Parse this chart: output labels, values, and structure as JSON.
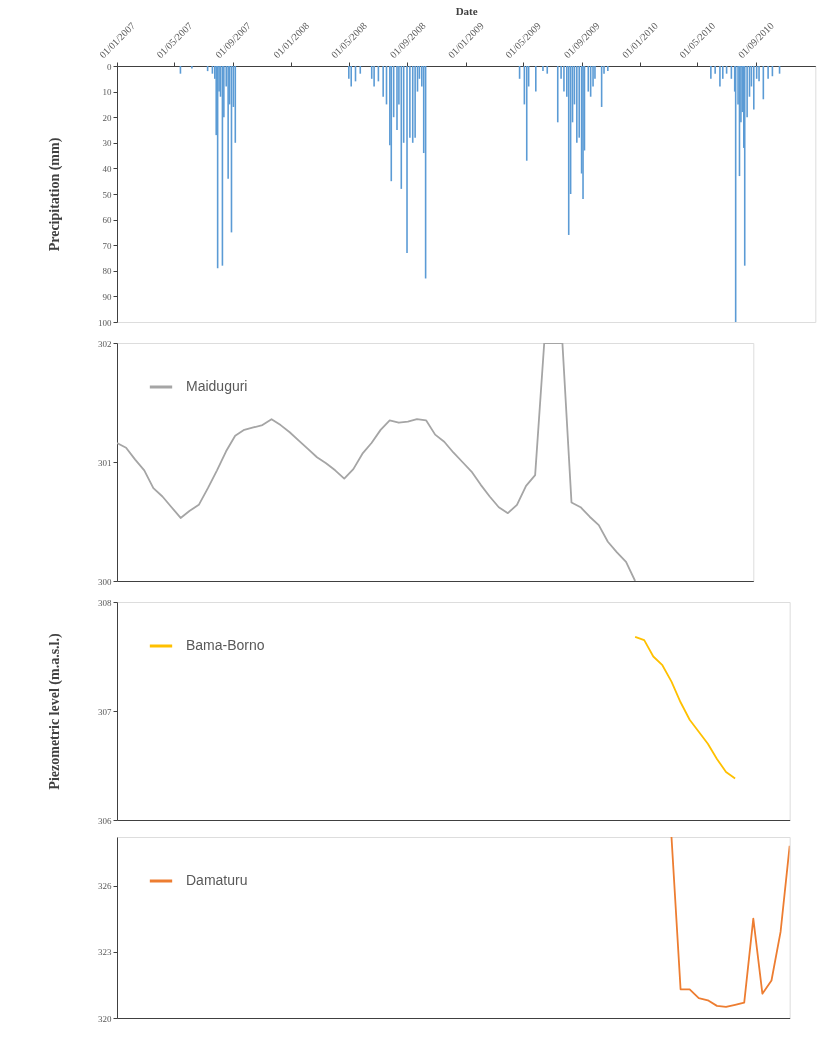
{
  "chart_data": [
    {
      "type": "bar",
      "xlabel": "Date",
      "ylabel": "Precipitation (mm)",
      "color": "#5b9bd5",
      "x": [
        "2007-05-14",
        "2007-06-07",
        "2007-07-10",
        "2007-07-20",
        "2007-07-25",
        "2007-07-28",
        "2007-07-31",
        "2007-08-03",
        "2007-08-06",
        "2007-08-10",
        "2007-08-13",
        "2007-08-18",
        "2007-08-22",
        "2007-08-25",
        "2007-08-29",
        "2007-09-02",
        "2007-09-06",
        "2008-05-01",
        "2008-05-06",
        "2008-05-15",
        "2008-05-25",
        "2008-06-18",
        "2008-06-23",
        "2008-07-02",
        "2008-07-12",
        "2008-07-19",
        "2008-07-26",
        "2008-07-29",
        "2008-08-03",
        "2008-08-10",
        "2008-08-14",
        "2008-08-19",
        "2008-08-24",
        "2008-08-31",
        "2008-09-06",
        "2008-09-12",
        "2008-09-17",
        "2008-09-22",
        "2008-09-26",
        "2008-10-01",
        "2008-10-05",
        "2008-10-09",
        "2009-04-24",
        "2009-05-04",
        "2009-05-09",
        "2009-05-13",
        "2009-05-28",
        "2009-06-12",
        "2009-06-21",
        "2009-07-13",
        "2009-07-20",
        "2009-07-26",
        "2009-08-01",
        "2009-08-05",
        "2009-08-09",
        "2009-08-13",
        "2009-08-17",
        "2009-08-22",
        "2009-08-27",
        "2009-09-01",
        "2009-09-04",
        "2009-09-07",
        "2009-09-15",
        "2009-09-20",
        "2009-09-25",
        "2009-09-29",
        "2009-10-13",
        "2009-10-18",
        "2009-10-26",
        "2010-05-30",
        "2010-06-08",
        "2010-06-18",
        "2010-06-24",
        "2010-07-02",
        "2010-07-12",
        "2010-07-19",
        "2010-07-21",
        "2010-07-26",
        "2010-07-29",
        "2010-08-01",
        "2010-08-04",
        "2010-08-07",
        "2010-08-09",
        "2010-08-14",
        "2010-08-19",
        "2010-08-23",
        "2010-08-28",
        "2010-09-03",
        "2010-09-08",
        "2010-09-17",
        "2010-09-27",
        "2010-10-06",
        "2010-10-21"
      ],
      "values": [
        3,
        1,
        2,
        3,
        5,
        27,
        79,
        10,
        12,
        78,
        20,
        8,
        44,
        15,
        65,
        16,
        30,
        5,
        8,
        6,
        3,
        5,
        8,
        6,
        12,
        15,
        31,
        45,
        20,
        25,
        15,
        48,
        30,
        73,
        28,
        30,
        28,
        10,
        5,
        8,
        34,
        83,
        5,
        15,
        37,
        8,
        10,
        2,
        3,
        22,
        5,
        10,
        12,
        66,
        50,
        22,
        15,
        30,
        28,
        42,
        52,
        33,
        10,
        12,
        8,
        5,
        16,
        3,
        2,
        5,
        3,
        8,
        5,
        3,
        5,
        10,
        100,
        15,
        43,
        22,
        18,
        32,
        78,
        20,
        12,
        8,
        17,
        5,
        6,
        13,
        5,
        4,
        3
      ],
      "xlim": [
        "2007-01-01",
        "2011-01-04"
      ],
      "ylim": [
        100,
        0
      ],
      "xticks": [
        {
          "value": "2007-01-01",
          "label": "01/01/2007"
        },
        {
          "value": "2007-05-01",
          "label": "01/05/2007"
        },
        {
          "value": "2007-09-01",
          "label": "01/09/2007"
        },
        {
          "value": "2008-01-01",
          "label": "01/01/2008"
        },
        {
          "value": "2008-05-01",
          "label": "01/05/2008"
        },
        {
          "value": "2008-09-01",
          "label": "01/09/2008"
        },
        {
          "value": "2009-01-01",
          "label": "01/01/2009"
        },
        {
          "value": "2009-05-01",
          "label": "01/05/2009"
        },
        {
          "value": "2009-09-01",
          "label": "01/09/2009"
        },
        {
          "value": "2010-01-01",
          "label": "01/01/2010"
        },
        {
          "value": "2010-05-01",
          "label": "01/05/2010"
        },
        {
          "value": "2010-09-01",
          "label": "01/09/2010"
        }
      ],
      "yticks": [
        0,
        10,
        20,
        30,
        40,
        50,
        60,
        70,
        80,
        90,
        100
      ]
    },
    {
      "type": "line",
      "legend": "top left",
      "tick_labels": "y",
      "categories": [
        null,
        null,
        null,
        null,
        null,
        null,
        null,
        null,
        null,
        null,
        null,
        null,
        null,
        null,
        null,
        null,
        null,
        null,
        null,
        null,
        null,
        null,
        null,
        null,
        null,
        null,
        null,
        null,
        null,
        null,
        null,
        null,
        null,
        null,
        null,
        null,
        null,
        null,
        null,
        null,
        null,
        null,
        null,
        null,
        null,
        null,
        null,
        null,
        null,
        null,
        null,
        null,
        null,
        null,
        null,
        null,
        null,
        null,
        null,
        null,
        null,
        null,
        null,
        null,
        null,
        null,
        null,
        null,
        null,
        null,
        null
      ],
      "series": [
        {
          "name": "Maiduguri",
          "color": "#a5a5a5",
          "values": [
            301.16,
            301.12,
            301.02,
            300.93,
            300.78,
            300.71,
            300.62,
            300.53,
            300.59,
            300.64,
            300.78,
            300.93,
            301.09,
            301.22,
            301.27,
            301.29,
            301.31,
            301.36,
            301.31,
            301.25,
            301.18,
            301.11,
            301.04,
            300.99,
            300.93,
            300.86,
            300.94,
            301.07,
            301.16,
            301.27,
            301.35,
            301.33,
            301.34,
            301.36,
            301.35,
            301.23,
            301.17,
            301.08,
            301.0,
            300.92,
            300.81,
            300.71,
            300.62,
            300.57,
            300.64,
            300.8,
            300.89,
            302,
            302,
            302,
            300.66,
            300.62,
            300.54,
            300.47,
            300.33,
            300.24,
            300.16,
            300.0,
            null,
            null,
            null,
            null,
            null,
            null,
            null,
            null,
            null,
            null,
            null,
            null,
            null
          ]
        }
      ],
      "ylim": [
        300,
        302
      ],
      "yticks": [
        300,
        301,
        302
      ]
    },
    {
      "type": "line",
      "legend": "top left",
      "tick_labels": "y",
      "ylabel": "Piezometric level (m.a.s.l.)",
      "categories": [
        null,
        null,
        null,
        null,
        null,
        null,
        null,
        null,
        null,
        null,
        null,
        null,
        null,
        null,
        null,
        null,
        null,
        null,
        null,
        null,
        null,
        null,
        null,
        null,
        null,
        null,
        null,
        null,
        null,
        null,
        null,
        null,
        null,
        null,
        null,
        null,
        null,
        null,
        null,
        null,
        null,
        null,
        null,
        null,
        null,
        null,
        null,
        null,
        null,
        null,
        null,
        null,
        null,
        null,
        null,
        null,
        null,
        null,
        null,
        null,
        null,
        null,
        null,
        null,
        null,
        null,
        null,
        null,
        null,
        null,
        null,
        null,
        null,
        null,
        null
      ],
      "series": [
        {
          "name": "Bama-Borno",
          "color": "#ffc000",
          "values": [
            null,
            null,
            null,
            null,
            null,
            null,
            null,
            null,
            null,
            null,
            null,
            null,
            null,
            null,
            null,
            null,
            null,
            null,
            null,
            null,
            null,
            null,
            null,
            null,
            null,
            null,
            null,
            null,
            null,
            null,
            null,
            null,
            null,
            null,
            null,
            null,
            null,
            null,
            null,
            null,
            null,
            null,
            null,
            null,
            null,
            null,
            null,
            null,
            null,
            null,
            null,
            null,
            null,
            null,
            null,
            null,
            null,
            307.68,
            307.65,
            307.5,
            307.42,
            307.27,
            307.08,
            306.92,
            306.81,
            306.7,
            306.56,
            306.44,
            306.38,
            null,
            null,
            null,
            null,
            null,
            null
          ]
        }
      ],
      "ylim": [
        306,
        308
      ],
      "yticks": [
        306,
        307,
        308
      ]
    },
    {
      "type": "line",
      "legend": "top left",
      "tick_labels": "y",
      "categories": [
        null,
        null,
        null,
        null,
        null,
        null,
        null,
        null,
        null,
        null,
        null,
        null,
        null,
        null,
        null,
        null,
        null,
        null,
        null,
        null,
        null,
        null,
        null,
        null,
        null,
        null,
        null,
        null,
        null,
        null,
        null,
        null,
        null,
        null,
        null,
        null,
        null,
        null,
        null,
        null,
        null,
        null,
        null,
        null,
        null,
        null,
        null,
        null,
        null,
        null,
        null,
        null,
        null,
        null,
        null,
        null,
        null,
        null,
        null,
        null,
        null,
        null,
        null,
        null,
        null,
        null,
        null,
        null,
        null,
        null,
        null,
        null,
        null,
        null,
        null
      ],
      "series": [
        {
          "name": "Damaturu",
          "color": "#ed7d31",
          "values": [
            null,
            null,
            null,
            null,
            null,
            null,
            null,
            null,
            null,
            null,
            null,
            null,
            null,
            null,
            null,
            null,
            null,
            null,
            null,
            null,
            null,
            null,
            null,
            null,
            null,
            null,
            null,
            null,
            null,
            null,
            null,
            null,
            null,
            null,
            null,
            null,
            null,
            null,
            null,
            null,
            null,
            null,
            null,
            null,
            null,
            null,
            null,
            null,
            null,
            null,
            null,
            null,
            null,
            null,
            null,
            null,
            null,
            null,
            null,
            null,
            null,
            328.2,
            321.3,
            321.3,
            320.9,
            320.8,
            320.55,
            320.5,
            320.6,
            320.7,
            324.5,
            321.1,
            321.7,
            323.9,
            327.8
          ]
        }
      ],
      "ylim": [
        320,
        328.2
      ],
      "yticks": [
        320,
        323,
        326
      ]
    }
  ]
}
